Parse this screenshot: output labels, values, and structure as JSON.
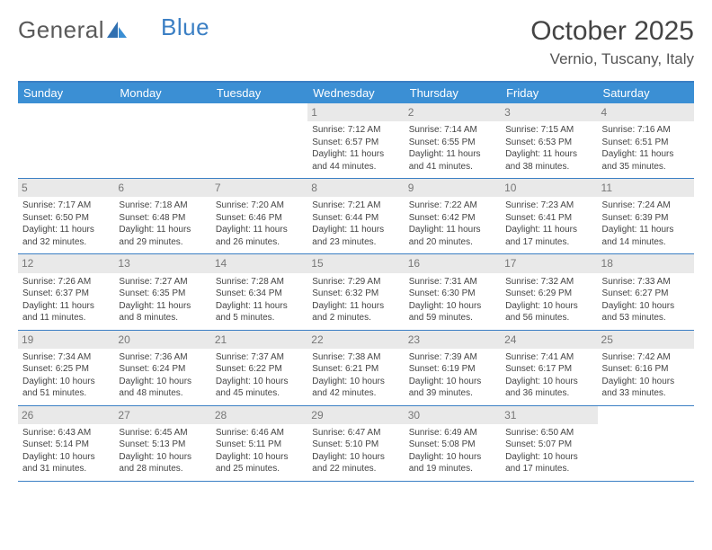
{
  "brand": {
    "part1": "General",
    "part2": "Blue"
  },
  "title": "October 2025",
  "location": "Vernio, Tuscany, Italy",
  "colors": {
    "header_bar": "#3b8fd4",
    "border": "#3b7fc4",
    "daynum_bg": "#e9e9e9",
    "text": "#444444",
    "bg": "#ffffff"
  },
  "dow": [
    "Sunday",
    "Monday",
    "Tuesday",
    "Wednesday",
    "Thursday",
    "Friday",
    "Saturday"
  ],
  "weeks": [
    [
      {
        "n": "",
        "sr": "",
        "ss": "",
        "dl1": "",
        "dl2": ""
      },
      {
        "n": "",
        "sr": "",
        "ss": "",
        "dl1": "",
        "dl2": ""
      },
      {
        "n": "",
        "sr": "",
        "ss": "",
        "dl1": "",
        "dl2": ""
      },
      {
        "n": "1",
        "sr": "Sunrise: 7:12 AM",
        "ss": "Sunset: 6:57 PM",
        "dl1": "Daylight: 11 hours",
        "dl2": "and 44 minutes."
      },
      {
        "n": "2",
        "sr": "Sunrise: 7:14 AM",
        "ss": "Sunset: 6:55 PM",
        "dl1": "Daylight: 11 hours",
        "dl2": "and 41 minutes."
      },
      {
        "n": "3",
        "sr": "Sunrise: 7:15 AM",
        "ss": "Sunset: 6:53 PM",
        "dl1": "Daylight: 11 hours",
        "dl2": "and 38 minutes."
      },
      {
        "n": "4",
        "sr": "Sunrise: 7:16 AM",
        "ss": "Sunset: 6:51 PM",
        "dl1": "Daylight: 11 hours",
        "dl2": "and 35 minutes."
      }
    ],
    [
      {
        "n": "5",
        "sr": "Sunrise: 7:17 AM",
        "ss": "Sunset: 6:50 PM",
        "dl1": "Daylight: 11 hours",
        "dl2": "and 32 minutes."
      },
      {
        "n": "6",
        "sr": "Sunrise: 7:18 AM",
        "ss": "Sunset: 6:48 PM",
        "dl1": "Daylight: 11 hours",
        "dl2": "and 29 minutes."
      },
      {
        "n": "7",
        "sr": "Sunrise: 7:20 AM",
        "ss": "Sunset: 6:46 PM",
        "dl1": "Daylight: 11 hours",
        "dl2": "and 26 minutes."
      },
      {
        "n": "8",
        "sr": "Sunrise: 7:21 AM",
        "ss": "Sunset: 6:44 PM",
        "dl1": "Daylight: 11 hours",
        "dl2": "and 23 minutes."
      },
      {
        "n": "9",
        "sr": "Sunrise: 7:22 AM",
        "ss": "Sunset: 6:42 PM",
        "dl1": "Daylight: 11 hours",
        "dl2": "and 20 minutes."
      },
      {
        "n": "10",
        "sr": "Sunrise: 7:23 AM",
        "ss": "Sunset: 6:41 PM",
        "dl1": "Daylight: 11 hours",
        "dl2": "and 17 minutes."
      },
      {
        "n": "11",
        "sr": "Sunrise: 7:24 AM",
        "ss": "Sunset: 6:39 PM",
        "dl1": "Daylight: 11 hours",
        "dl2": "and 14 minutes."
      }
    ],
    [
      {
        "n": "12",
        "sr": "Sunrise: 7:26 AM",
        "ss": "Sunset: 6:37 PM",
        "dl1": "Daylight: 11 hours",
        "dl2": "and 11 minutes."
      },
      {
        "n": "13",
        "sr": "Sunrise: 7:27 AM",
        "ss": "Sunset: 6:35 PM",
        "dl1": "Daylight: 11 hours",
        "dl2": "and 8 minutes."
      },
      {
        "n": "14",
        "sr": "Sunrise: 7:28 AM",
        "ss": "Sunset: 6:34 PM",
        "dl1": "Daylight: 11 hours",
        "dl2": "and 5 minutes."
      },
      {
        "n": "15",
        "sr": "Sunrise: 7:29 AM",
        "ss": "Sunset: 6:32 PM",
        "dl1": "Daylight: 11 hours",
        "dl2": "and 2 minutes."
      },
      {
        "n": "16",
        "sr": "Sunrise: 7:31 AM",
        "ss": "Sunset: 6:30 PM",
        "dl1": "Daylight: 10 hours",
        "dl2": "and 59 minutes."
      },
      {
        "n": "17",
        "sr": "Sunrise: 7:32 AM",
        "ss": "Sunset: 6:29 PM",
        "dl1": "Daylight: 10 hours",
        "dl2": "and 56 minutes."
      },
      {
        "n": "18",
        "sr": "Sunrise: 7:33 AM",
        "ss": "Sunset: 6:27 PM",
        "dl1": "Daylight: 10 hours",
        "dl2": "and 53 minutes."
      }
    ],
    [
      {
        "n": "19",
        "sr": "Sunrise: 7:34 AM",
        "ss": "Sunset: 6:25 PM",
        "dl1": "Daylight: 10 hours",
        "dl2": "and 51 minutes."
      },
      {
        "n": "20",
        "sr": "Sunrise: 7:36 AM",
        "ss": "Sunset: 6:24 PM",
        "dl1": "Daylight: 10 hours",
        "dl2": "and 48 minutes."
      },
      {
        "n": "21",
        "sr": "Sunrise: 7:37 AM",
        "ss": "Sunset: 6:22 PM",
        "dl1": "Daylight: 10 hours",
        "dl2": "and 45 minutes."
      },
      {
        "n": "22",
        "sr": "Sunrise: 7:38 AM",
        "ss": "Sunset: 6:21 PM",
        "dl1": "Daylight: 10 hours",
        "dl2": "and 42 minutes."
      },
      {
        "n": "23",
        "sr": "Sunrise: 7:39 AM",
        "ss": "Sunset: 6:19 PM",
        "dl1": "Daylight: 10 hours",
        "dl2": "and 39 minutes."
      },
      {
        "n": "24",
        "sr": "Sunrise: 7:41 AM",
        "ss": "Sunset: 6:17 PM",
        "dl1": "Daylight: 10 hours",
        "dl2": "and 36 minutes."
      },
      {
        "n": "25",
        "sr": "Sunrise: 7:42 AM",
        "ss": "Sunset: 6:16 PM",
        "dl1": "Daylight: 10 hours",
        "dl2": "and 33 minutes."
      }
    ],
    [
      {
        "n": "26",
        "sr": "Sunrise: 6:43 AM",
        "ss": "Sunset: 5:14 PM",
        "dl1": "Daylight: 10 hours",
        "dl2": "and 31 minutes."
      },
      {
        "n": "27",
        "sr": "Sunrise: 6:45 AM",
        "ss": "Sunset: 5:13 PM",
        "dl1": "Daylight: 10 hours",
        "dl2": "and 28 minutes."
      },
      {
        "n": "28",
        "sr": "Sunrise: 6:46 AM",
        "ss": "Sunset: 5:11 PM",
        "dl1": "Daylight: 10 hours",
        "dl2": "and 25 minutes."
      },
      {
        "n": "29",
        "sr": "Sunrise: 6:47 AM",
        "ss": "Sunset: 5:10 PM",
        "dl1": "Daylight: 10 hours",
        "dl2": "and 22 minutes."
      },
      {
        "n": "30",
        "sr": "Sunrise: 6:49 AM",
        "ss": "Sunset: 5:08 PM",
        "dl1": "Daylight: 10 hours",
        "dl2": "and 19 minutes."
      },
      {
        "n": "31",
        "sr": "Sunrise: 6:50 AM",
        "ss": "Sunset: 5:07 PM",
        "dl1": "Daylight: 10 hours",
        "dl2": "and 17 minutes."
      },
      {
        "n": "",
        "sr": "",
        "ss": "",
        "dl1": "",
        "dl2": ""
      }
    ]
  ]
}
